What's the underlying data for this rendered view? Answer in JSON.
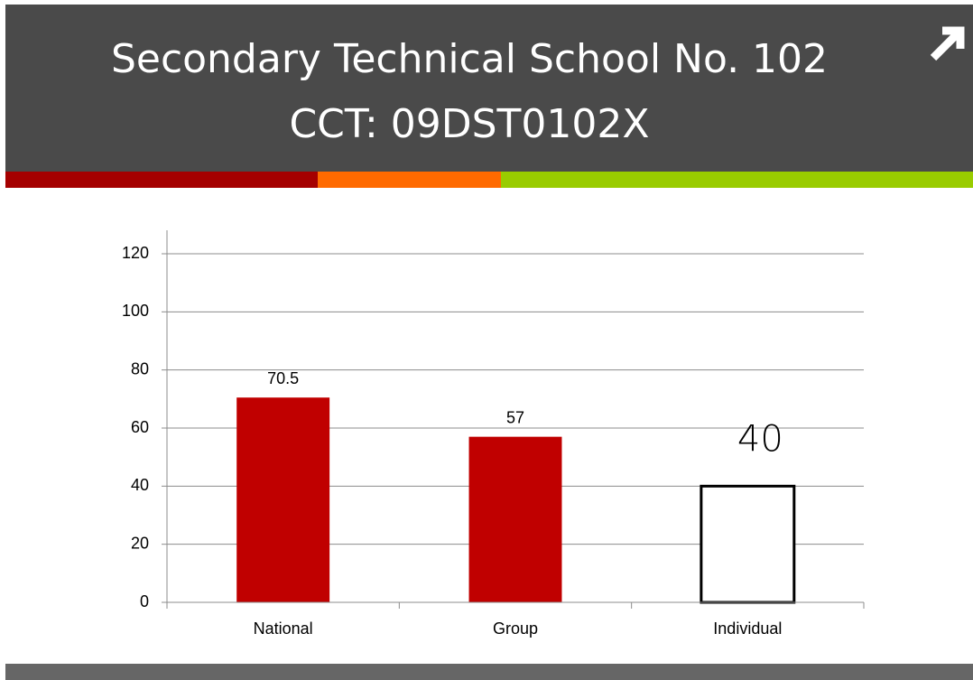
{
  "header": {
    "title_line_1": "Secondary Technical School No. 102",
    "title_line_2": "CCT: 09DST0102X"
  },
  "chart_data": {
    "type": "bar",
    "categories": [
      "National",
      "Group",
      "Individual"
    ],
    "values": [
      70.5,
      57,
      40
    ],
    "colors": [
      "#c00000",
      "#c00000",
      "#ffffff"
    ],
    "edge_colors": [
      "#c00000",
      "#c00000",
      "#000000"
    ],
    "ylim": [
      0,
      120
    ],
    "yticks": [
      0,
      20,
      40,
      60,
      80,
      100,
      120
    ],
    "grid": true
  }
}
